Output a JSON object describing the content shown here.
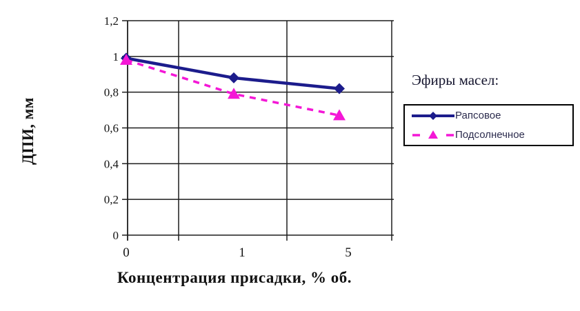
{
  "figure": {
    "background": "#ffffff"
  },
  "chart_data": {
    "type": "line",
    "title": "",
    "categories": [
      "0",
      "1",
      "5"
    ],
    "series": [
      {
        "name": "Рапсовое",
        "values": [
          0.99,
          0.88,
          0.82
        ],
        "color": "#1c1c8c",
        "marker": "diamond",
        "line_style": "solid"
      },
      {
        "name": "Подсолнечное",
        "values": [
          0.98,
          0.79,
          0.67
        ],
        "color": "#f417d6",
        "marker": "triangle",
        "line_style": "dashed"
      }
    ],
    "xlabel": "Концентрация присадки, % об.",
    "ylabel": "ДПИ, мм",
    "ylim": [
      0,
      1.2
    ],
    "y_ticks": {
      "values": [
        0,
        0.2,
        0.4,
        0.6,
        0.8,
        1,
        1.2
      ],
      "labels": [
        "0",
        "0,2",
        "0,4",
        "0,6",
        "0,8",
        "1",
        "1,2"
      ]
    },
    "grid": true,
    "axis_color": "#1c1c1c",
    "legend": {
      "title": "Эфиры масел:",
      "position": "right",
      "entries": [
        "Рапсовое",
        "Подсолнечное"
      ]
    }
  }
}
